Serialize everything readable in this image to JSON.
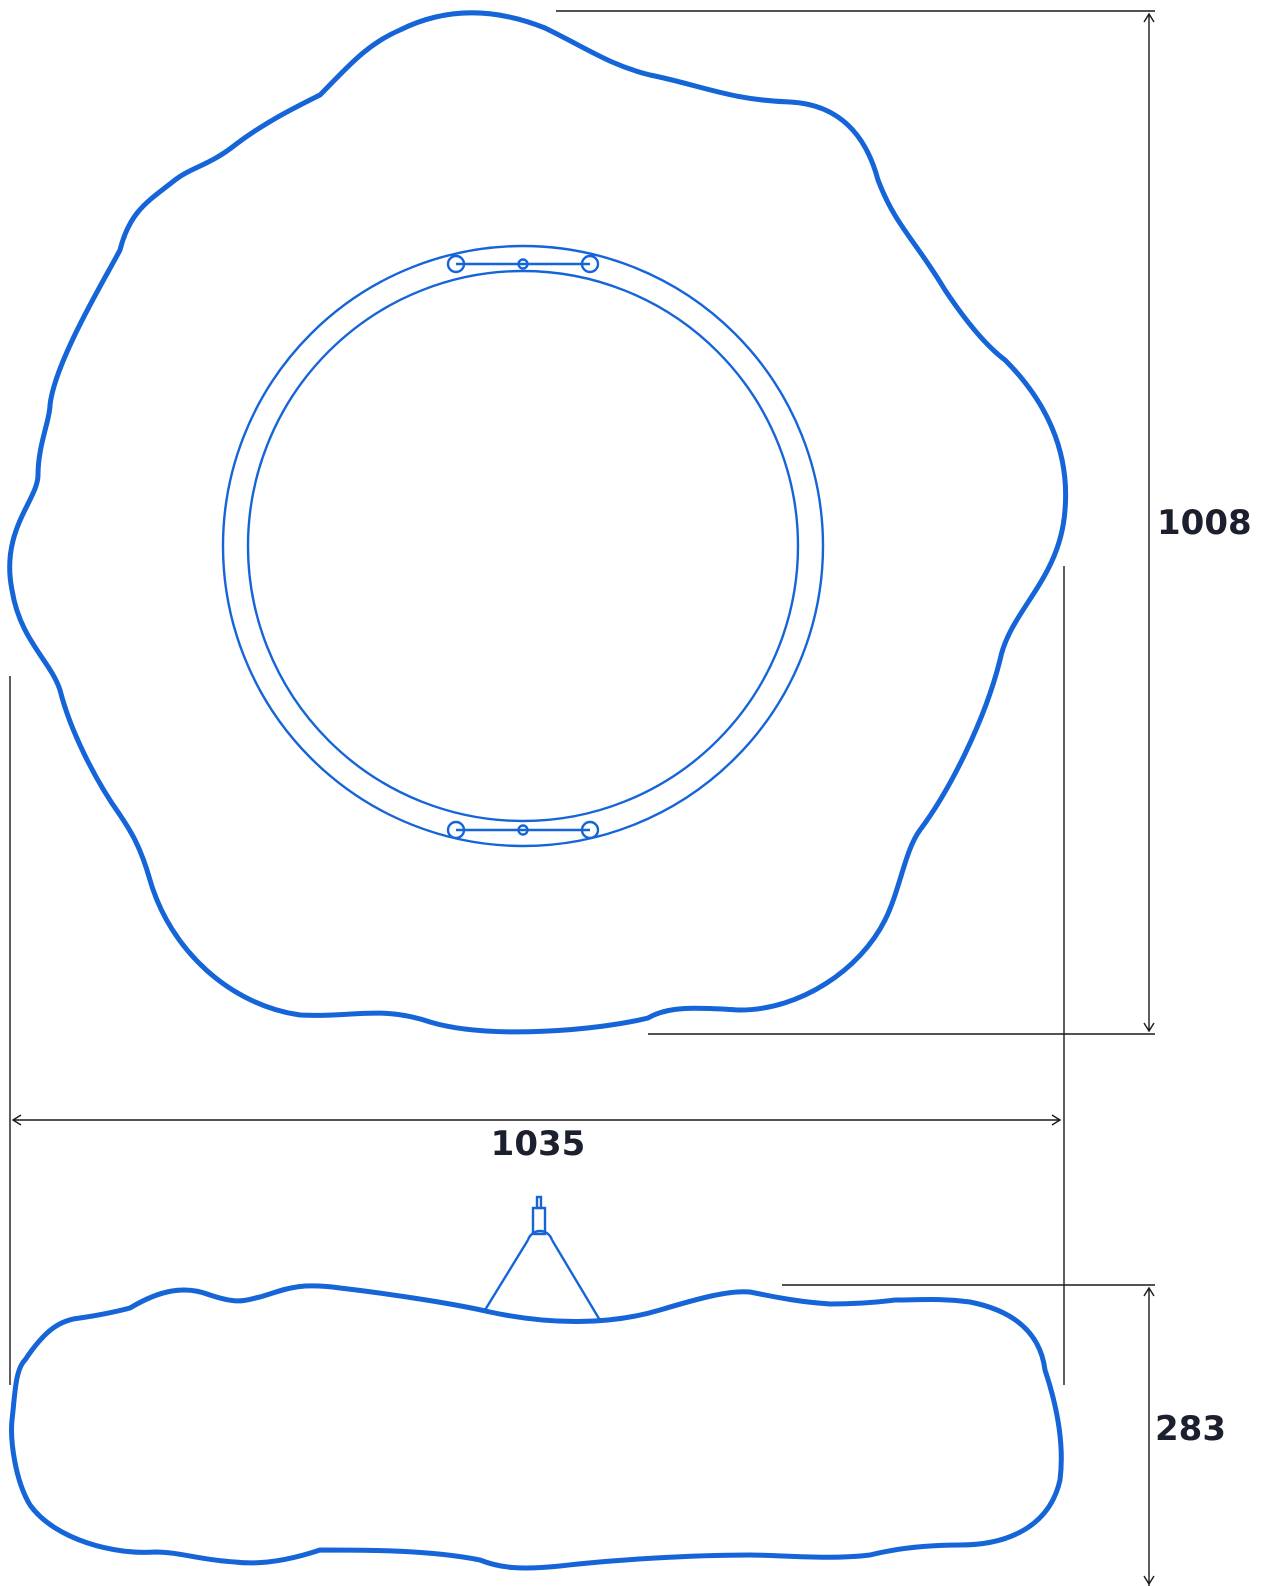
{
  "colors": {
    "outline": "#1565d8",
    "dimension_line": "#1a1a1a",
    "dimension_text": "#1b1f2e",
    "background": "#ffffff"
  },
  "dimensions": {
    "height_label": "1008",
    "width_label": "1035",
    "depth_label": "283"
  }
}
